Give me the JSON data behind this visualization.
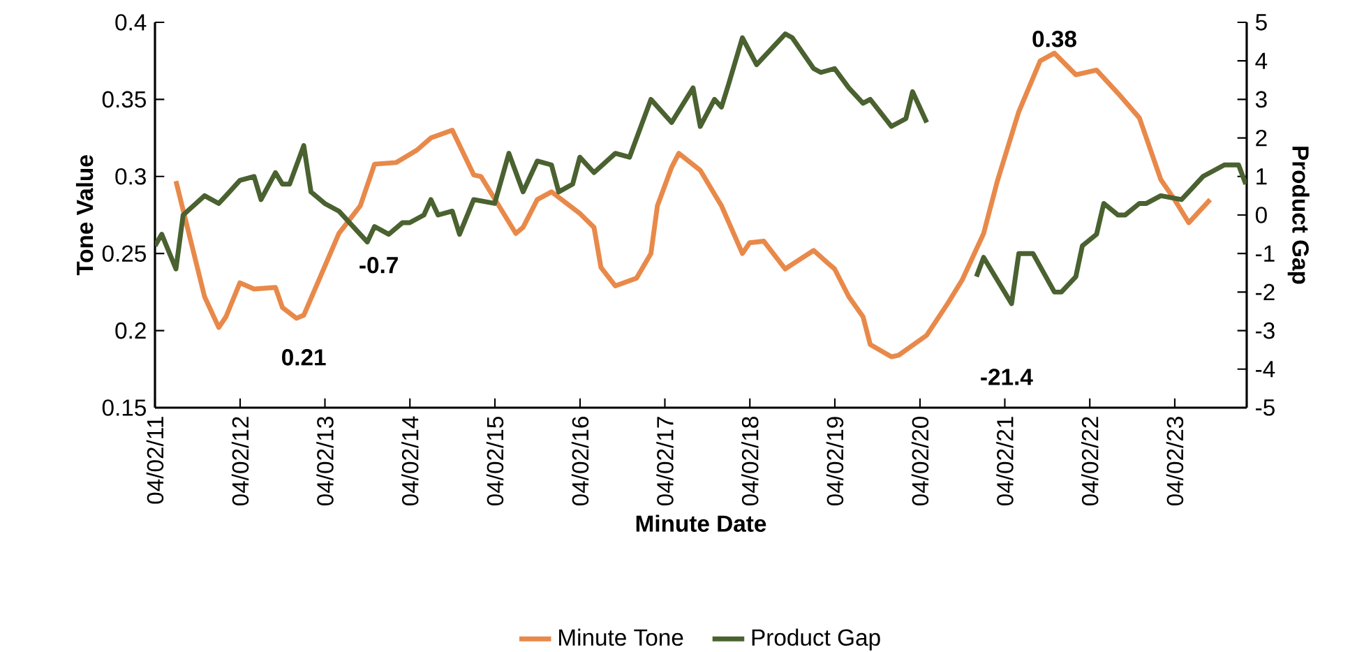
{
  "chart_data": {
    "type": "line",
    "xlabel": "Minute Date",
    "ylabel": "Tone Value",
    "y2label": "Product Gap",
    "xlim": [
      "2011-04-02",
      "2024-02-05"
    ],
    "xticks": [
      {
        "value": "2011-04-02",
        "label": "04/02/11"
      },
      {
        "value": "2012-04-02",
        "label": "04/02/12"
      },
      {
        "value": "2013-04-02",
        "label": "04/02/13"
      },
      {
        "value": "2014-04-02",
        "label": "04/02/14"
      },
      {
        "value": "2015-04-02",
        "label": "04/02/15"
      },
      {
        "value": "2016-04-02",
        "label": "04/02/16"
      },
      {
        "value": "2017-04-02",
        "label": "04/02/17"
      },
      {
        "value": "2018-04-02",
        "label": "04/02/18"
      },
      {
        "value": "2019-04-02",
        "label": "04/02/19"
      },
      {
        "value": "2020-04-02",
        "label": "04/02/20"
      },
      {
        "value": "2021-04-02",
        "label": "04/02/21"
      },
      {
        "value": "2022-04-02",
        "label": "04/02/22"
      },
      {
        "value": "2023-04-02",
        "label": "04/02/23"
      }
    ],
    "ylim": [
      0.15,
      0.4
    ],
    "yticks": [
      0.15,
      0.2,
      0.25,
      0.3,
      0.35,
      0.4
    ],
    "y2lim": [
      -5,
      5
    ],
    "y2ticks": [
      -5,
      -4,
      -3,
      -2,
      -1,
      0,
      1,
      2,
      3,
      4,
      5
    ],
    "legend": "bottom",
    "marker": "none",
    "line_style": "solid",
    "series": [
      {
        "name": "Minute Tone",
        "color": "#e8894a",
        "x": [
          "2011-07",
          "2011-11",
          "2012-01",
          "2012-02",
          "2012-04",
          "2012-06",
          "2012-09",
          "2012-10",
          "2012-12",
          "2013-01",
          "2013-06",
          "2013-09",
          "2013-11",
          "2014-02",
          "2014-05",
          "2014-07",
          "2014-10",
          "2015-01",
          "2015-02",
          "2015-07",
          "2015-08",
          "2015-10",
          "2015-12",
          "2016-04",
          "2016-06",
          "2016-07",
          "2016-09",
          "2016-12",
          "2017-02",
          "2017-03",
          "2017-05",
          "2017-06",
          "2017-09",
          "2017-12",
          "2018-03",
          "2018-04",
          "2018-06",
          "2018-09",
          "2018-10",
          "2019-01",
          "2019-03",
          "2019-04",
          "2019-06",
          "2019-08",
          "2019-09",
          "2019-12",
          "2020-01",
          "2020-05",
          "2020-08",
          "2020-10",
          "2021-01",
          "2021-03",
          "2021-06",
          "2021-09",
          "2021-11",
          "2022-02",
          "2022-05",
          "2022-08",
          "2022-11",
          "2023-02",
          "2023-04",
          "2023-06",
          "2023-09"
        ],
        "values": [
          0.297,
          0.222,
          0.202,
          0.209,
          0.231,
          0.227,
          0.228,
          0.215,
          0.208,
          0.21,
          0.263,
          0.281,
          0.308,
          0.309,
          0.317,
          0.325,
          0.33,
          0.301,
          0.3,
          0.263,
          0.267,
          0.285,
          0.29,
          0.276,
          0.267,
          0.241,
          0.229,
          0.234,
          0.25,
          0.281,
          0.306,
          0.315,
          0.304,
          0.281,
          0.25,
          0.257,
          0.258,
          0.24,
          0.243,
          0.252,
          0.244,
          0.24,
          0.222,
          0.209,
          0.191,
          0.183,
          0.184,
          0.197,
          0.218,
          0.233,
          0.263,
          0.297,
          0.342,
          0.375,
          0.38,
          0.366,
          0.369,
          0.354,
          0.338,
          0.298,
          0.285,
          0.27,
          0.285
        ]
      },
      {
        "name": "Product Gap",
        "color": "#4a6130",
        "axis": "y2",
        "x": [
          "2011-04-02",
          "2011-05",
          "2011-07",
          "2011-08",
          "2011-11",
          "2012-01",
          "2012-02",
          "2012-04",
          "2012-06",
          "2012-07",
          "2012-09",
          "2012-10",
          "2012-11",
          "2013-01",
          "2013-02",
          "2013-04",
          "2013-06",
          "2013-08",
          "2013-10",
          "2013-11",
          "2014-01",
          "2014-03",
          "2014-04",
          "2014-06",
          "2014-07",
          "2014-08",
          "2014-10",
          "2014-11",
          "2015-01",
          "2015-04",
          "2015-06",
          "2015-08",
          "2015-10",
          "2015-12",
          "2016-01",
          "2016-03",
          "2016-04",
          "2016-06",
          "2016-09",
          "2016-11",
          "2017-02",
          "2017-05",
          "2017-08",
          "2017-09",
          "2017-11",
          "2017-12",
          "2018-01",
          "2018-03",
          "2018-05",
          "2018-09",
          "2018-10",
          "2019-01",
          "2019-02",
          "2019-04",
          "2019-06",
          "2019-08",
          "2019-09",
          "2019-12",
          "2020-02",
          "2020-03",
          "2020-05",
          "2020-08",
          "2020-12",
          "2021-01",
          "2021-05",
          "2021-06",
          "2021-08",
          "2021-11",
          "2021-12",
          "2022-02",
          "2022-03",
          "2022-05",
          "2022-06",
          "2022-08",
          "2022-09",
          "2022-11",
          "2022-12",
          "2023-02",
          "2023-05",
          "2023-06",
          "2023-08",
          "2023-11",
          "2024-01",
          "2024-02"
        ],
        "values": [
          -0.8,
          -0.5,
          -1.4,
          0.0,
          0.5,
          0.3,
          0.5,
          0.9,
          1.0,
          0.4,
          1.1,
          0.8,
          0.8,
          1.8,
          0.6,
          0.3,
          0.1,
          -0.3,
          -0.7,
          -0.3,
          -0.5,
          -0.2,
          -0.2,
          0.0,
          0.4,
          0.0,
          0.1,
          -0.5,
          0.4,
          0.3,
          1.6,
          0.6,
          1.4,
          1.3,
          0.6,
          0.8,
          1.5,
          1.1,
          1.6,
          1.5,
          3.0,
          2.4,
          3.3,
          2.3,
          3.0,
          2.8,
          3.4,
          4.6,
          3.9,
          4.7,
          4.6,
          3.8,
          3.7,
          3.8,
          3.3,
          2.9,
          3.0,
          2.3,
          2.5,
          3.2,
          2.4,
          null,
          -1.6,
          -1.1,
          -2.3,
          -1.0,
          -1.0,
          -2.0,
          -2.0,
          -1.6,
          -0.8,
          -0.5,
          0.3,
          0.0,
          0.0,
          0.3,
          0.3,
          0.5,
          0.4,
          0.6,
          1.0,
          1.3,
          1.3,
          0.8
        ]
      }
    ],
    "annotations": [
      {
        "text": "0.21",
        "x": "2013-01",
        "y": 0.21
      },
      "-0.7",
      "-21.4",
      {
        "text": "0.38",
        "x": "2021-11",
        "y": 0.38
      }
    ]
  }
}
